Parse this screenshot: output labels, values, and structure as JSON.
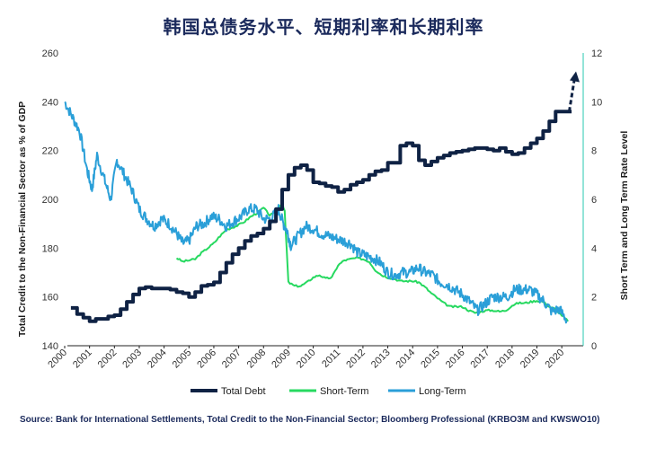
{
  "chart_data": {
    "type": "line",
    "title": "韩国总债务水平、短期利率和长期利率",
    "ylabel_left": "Total Credit to the Non-Financial Sector as % of GDP",
    "ylabel_right": "Short Term and Long Term Rate Level",
    "ylim_left": [
      140,
      260
    ],
    "ylim_right": [
      0,
      12
    ],
    "yticks_left": [
      "140",
      "160",
      "180",
      "200",
      "220",
      "240",
      "260"
    ],
    "yticks_right": [
      "0",
      "2",
      "4",
      "6",
      "8",
      "10",
      "12"
    ],
    "xlim": [
      2000,
      2020.5
    ],
    "xticks": [
      "2000",
      "2001",
      "2002",
      "2003",
      "2004",
      "2005",
      "2006",
      "2007",
      "2008",
      "2009",
      "2010",
      "2011",
      "2012",
      "2013",
      "2014",
      "2015",
      "2016",
      "2017",
      "2018",
      "2019",
      "2020"
    ],
    "legend_position": "bottom",
    "grid": false,
    "series": [
      {
        "name": "Total Debt",
        "axis": "left",
        "color": "#0f2244",
        "step": true,
        "x": [
          2000.25,
          2000.5,
          2000.75,
          2001.0,
          2001.25,
          2001.5,
          2001.75,
          2002.0,
          2002.25,
          2002.5,
          2002.75,
          2003.0,
          2003.25,
          2003.5,
          2003.75,
          2004.0,
          2004.25,
          2004.5,
          2004.75,
          2005.0,
          2005.25,
          2005.5,
          2005.75,
          2006.0,
          2006.25,
          2006.5,
          2006.75,
          2007.0,
          2007.25,
          2007.5,
          2007.75,
          2008.0,
          2008.25,
          2008.5,
          2008.75,
          2009.0,
          2009.25,
          2009.5,
          2009.75,
          2010.0,
          2010.25,
          2010.5,
          2010.75,
          2011.0,
          2011.25,
          2011.5,
          2011.75,
          2012.0,
          2012.25,
          2012.5,
          2012.75,
          2013.0,
          2013.25,
          2013.5,
          2013.75,
          2014.0,
          2014.25,
          2014.5,
          2014.75,
          2015.0,
          2015.25,
          2015.5,
          2015.75,
          2016.0,
          2016.25,
          2016.5,
          2016.75,
          2017.0,
          2017.25,
          2017.5,
          2017.75,
          2018.0,
          2018.25,
          2018.5,
          2018.75,
          2019.0,
          2019.25,
          2019.5,
          2019.75,
          2020.0,
          2020.25
        ],
        "values": [
          155.5,
          153,
          151.5,
          150,
          151,
          151,
          152,
          152.5,
          155,
          158,
          161,
          163.5,
          164,
          163.5,
          163.5,
          163.5,
          163,
          162,
          161.5,
          160,
          162,
          164.5,
          165,
          166,
          170,
          174,
          177.5,
          180,
          183,
          185,
          186,
          188,
          191,
          196,
          204,
          210,
          213,
          214,
          212,
          207,
          206.5,
          205.5,
          205,
          203,
          204,
          206,
          207,
          208,
          210,
          211.5,
          212,
          215,
          215,
          222,
          223,
          222,
          216,
          214,
          215.5,
          217,
          218,
          219,
          219.5,
          220,
          220.5,
          221,
          221,
          220.5,
          220,
          221,
          219.5,
          218.5,
          219,
          221,
          223,
          225,
          228,
          232,
          236,
          236,
          236
        ]
      },
      {
        "name": "Short-Term",
        "axis": "right",
        "color": "#27d960",
        "x": [
          2004.5,
          2004.75,
          2005.0,
          2005.25,
          2005.5,
          2005.75,
          2006.0,
          2006.25,
          2006.5,
          2006.75,
          2007.0,
          2007.25,
          2007.5,
          2007.75,
          2008.0,
          2008.25,
          2008.5,
          2008.75,
          2008.85,
          2009.0,
          2009.25,
          2009.5,
          2009.75,
          2010.0,
          2010.25,
          2010.5,
          2010.75,
          2011.0,
          2011.25,
          2011.5,
          2011.75,
          2012.0,
          2012.25,
          2012.5,
          2012.75,
          2013.0,
          2013.25,
          2013.5,
          2013.75,
          2014.0,
          2014.25,
          2014.5,
          2014.75,
          2015.0,
          2015.25,
          2015.5,
          2015.75,
          2016.0,
          2016.25,
          2016.5,
          2016.75,
          2017.0,
          2017.25,
          2017.5,
          2017.75,
          2018.0,
          2018.25,
          2018.5,
          2018.75,
          2019.0,
          2019.25,
          2019.5,
          2019.75,
          2020.0,
          2020.25
        ],
        "values": [
          3.6,
          3.45,
          3.5,
          3.55,
          3.8,
          4.0,
          4.2,
          4.5,
          4.75,
          4.85,
          4.95,
          5.1,
          5.3,
          5.45,
          5.65,
          5.35,
          5.45,
          5.9,
          5.5,
          2.6,
          2.45,
          2.45,
          2.6,
          2.8,
          2.9,
          2.75,
          2.8,
          3.3,
          3.5,
          3.55,
          3.6,
          3.55,
          3.45,
          3.1,
          2.9,
          2.8,
          2.75,
          2.65,
          2.65,
          2.65,
          2.6,
          2.4,
          2.15,
          1.95,
          1.75,
          1.6,
          1.6,
          1.6,
          1.45,
          1.35,
          1.4,
          1.45,
          1.45,
          1.4,
          1.45,
          1.65,
          1.75,
          1.75,
          1.8,
          1.85,
          1.8,
          1.6,
          1.5,
          1.25,
          1.0
        ]
      },
      {
        "name": "Long-Term",
        "axis": "right",
        "color": "#2a9fd8",
        "x": [
          2000.0,
          2000.3,
          2000.6,
          2000.9,
          2001.1,
          2001.3,
          2001.6,
          2001.85,
          2002.1,
          2002.4,
          2002.7,
          2003.0,
          2003.3,
          2003.6,
          2003.9,
          2004.2,
          2004.5,
          2004.75,
          2005.0,
          2005.3,
          2005.6,
          2005.9,
          2006.2,
          2006.5,
          2006.8,
          2007.1,
          2007.4,
          2007.7,
          2008.0,
          2008.3,
          2008.6,
          2008.8,
          2008.95,
          2009.1,
          2009.4,
          2009.7,
          2010.0,
          2010.3,
          2010.6,
          2010.9,
          2011.2,
          2011.5,
          2011.8,
          2012.1,
          2012.4,
          2012.7,
          2013.0,
          2013.3,
          2013.6,
          2013.9,
          2014.2,
          2014.5,
          2014.8,
          2015.1,
          2015.4,
          2015.7,
          2016.0,
          2016.3,
          2016.6,
          2016.9,
          2017.2,
          2017.5,
          2017.8,
          2018.1,
          2018.4,
          2018.7,
          2019.0,
          2019.3,
          2019.6,
          2019.9,
          2020.2
        ],
        "values": [
          10.0,
          9.4,
          8.8,
          7.2,
          6.4,
          7.8,
          6.8,
          6.0,
          7.6,
          7.0,
          6.4,
          5.6,
          5.2,
          4.9,
          5.2,
          5.0,
          4.6,
          4.2,
          4.3,
          4.9,
          5.0,
          5.3,
          5.2,
          4.9,
          5.1,
          5.3,
          5.6,
          5.6,
          5.2,
          5.2,
          5.6,
          5.0,
          4.7,
          4.1,
          4.5,
          4.9,
          4.8,
          4.6,
          4.5,
          4.4,
          4.3,
          4.2,
          3.8,
          3.7,
          3.6,
          3.4,
          3.0,
          2.9,
          3.0,
          3.0,
          3.2,
          3.0,
          2.9,
          2.6,
          2.5,
          2.3,
          2.1,
          1.8,
          1.45,
          1.7,
          2.0,
          2.0,
          2.0,
          2.3,
          2.3,
          2.3,
          2.1,
          1.8,
          1.4,
          1.5,
          1.05
        ]
      }
    ],
    "projection": {
      "series": "Total Debt",
      "x": [
        2020.3,
        2020.5
      ],
      "values": [
        236,
        251
      ],
      "style": "dashed-arrow"
    },
    "source_text": "Source: Bank for International Settlements, Total Credit to the Non-Financial Sector; Bloomberg Professional (KRBO3M and KWSWO10)"
  }
}
